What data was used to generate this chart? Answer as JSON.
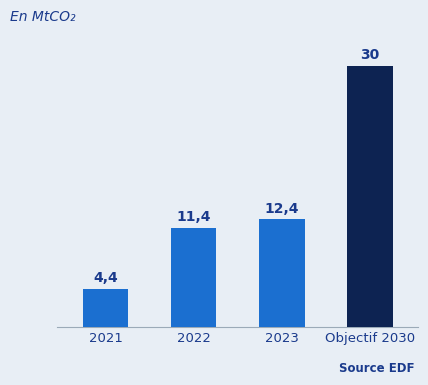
{
  "categories": [
    "2021",
    "2022",
    "2023",
    "Objectif 2030"
  ],
  "values": [
    4.4,
    11.4,
    12.4,
    30
  ],
  "labels": [
    "4,4",
    "11,4",
    "12,4",
    "30"
  ],
  "bar_colors": [
    "#1B6FD0",
    "#1B6FD0",
    "#1B6FD0",
    "#0D2352"
  ],
  "background_color": "#E8EEF5",
  "ylabel": "En MtCO₂",
  "source_text": "Source EDF",
  "ylim": [
    0,
    34
  ],
  "label_color": "#1A3A8C",
  "xlabel_color": "#1A3A8C",
  "source_color": "#1A3A8C",
  "ylabel_color": "#1A3A8C",
  "label_fontsize": 10,
  "xlabel_fontsize": 9.5,
  "source_fontsize": 8.5,
  "ylabel_fontsize": 10
}
